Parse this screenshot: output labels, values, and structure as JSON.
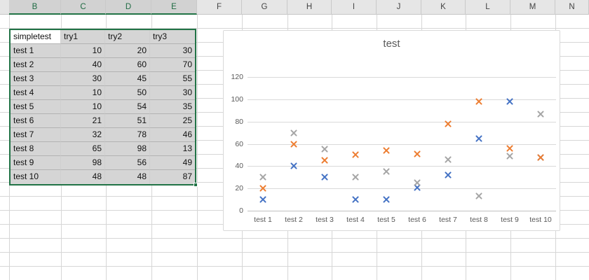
{
  "app": {
    "name": "Excel worksheet with scatter chart"
  },
  "columns": {
    "letters": [
      "B",
      "C",
      "D",
      "E",
      "F",
      "G",
      "H",
      "I",
      "J",
      "K",
      "L",
      "M",
      "N"
    ],
    "selected": [
      "B",
      "C",
      "D",
      "E"
    ]
  },
  "table": {
    "headers": [
      "simpletest",
      "try1",
      "try2",
      "try3"
    ],
    "active_cell": "simpletest",
    "rows": [
      {
        "label": "test 1",
        "values": [
          10,
          20,
          30
        ]
      },
      {
        "label": "test 2",
        "values": [
          40,
          60,
          70
        ]
      },
      {
        "label": "test 3",
        "values": [
          30,
          45,
          55
        ]
      },
      {
        "label": "test 4",
        "values": [
          10,
          50,
          30
        ]
      },
      {
        "label": "test 5",
        "values": [
          10,
          54,
          35
        ]
      },
      {
        "label": "test 6",
        "values": [
          21,
          51,
          25
        ]
      },
      {
        "label": "test 7",
        "values": [
          32,
          78,
          46
        ]
      },
      {
        "label": "test 8",
        "values": [
          65,
          98,
          13
        ]
      },
      {
        "label": "test 9",
        "values": [
          98,
          56,
          49
        ]
      },
      {
        "label": "test 10",
        "values": [
          48,
          48,
          87
        ]
      }
    ]
  },
  "chart_data": {
    "type": "scatter",
    "title": "test",
    "categories": [
      "test 1",
      "test 2",
      "test 3",
      "test 4",
      "test 5",
      "test 6",
      "test 7",
      "test 8",
      "test 9",
      "test 10"
    ],
    "series": [
      {
        "name": "try1",
        "color": "#4472C4",
        "values": [
          10,
          40,
          30,
          10,
          10,
          21,
          32,
          65,
          98,
          48
        ]
      },
      {
        "name": "try2",
        "color": "#ED7D31",
        "values": [
          20,
          60,
          45,
          50,
          54,
          51,
          78,
          98,
          56,
          48
        ]
      },
      {
        "name": "try3",
        "color": "#A5A5A5",
        "values": [
          30,
          70,
          55,
          30,
          35,
          25,
          46,
          13,
          49,
          87
        ]
      }
    ],
    "ylim": [
      0,
      120
    ],
    "yticks": [
      0,
      20,
      40,
      60,
      80,
      100,
      120
    ],
    "xlabel": "",
    "ylabel": "",
    "grid": true,
    "legend": "none",
    "marker_style": "x"
  },
  "colors": {
    "selection_green": "#217346",
    "selection_fill": "#D5D5D5",
    "header_bg": "#E6E6E6",
    "header_selected_bg": "#D2D2D2",
    "header_selected_text": "#1F6B43",
    "sheet_gridline": "#D6D6D6",
    "chart_border": "#D9D9D9",
    "chart_gridline": "#D9D9D9",
    "axis_text": "#595959"
  }
}
